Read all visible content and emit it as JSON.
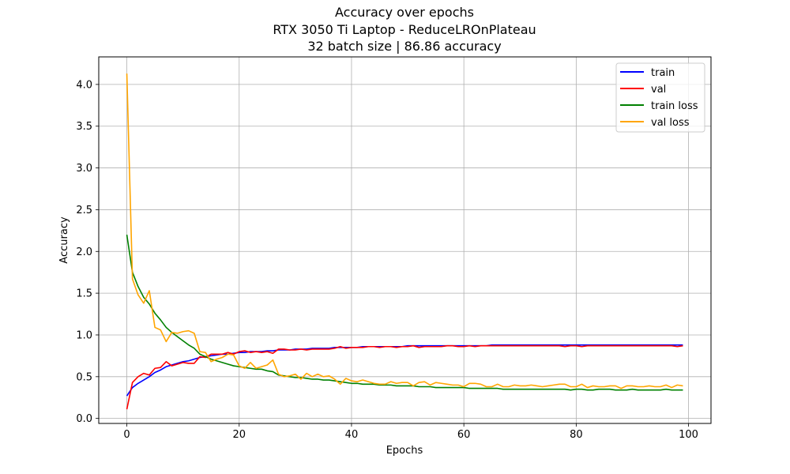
{
  "chart_data": {
    "type": "line",
    "title_lines": [
      "Accuracy over epochs",
      "RTX 3050 Ti Laptop - ReduceLROnPlateau",
      "32 batch size | 86.86 accuracy"
    ],
    "xlabel": "Epochs",
    "ylabel": "Accuracy",
    "xlim": [
      -5,
      104
    ],
    "ylim": [
      -0.06,
      4.33
    ],
    "x_ticks": [
      0,
      20,
      40,
      60,
      80,
      100
    ],
    "y_ticks": [
      0.0,
      0.5,
      1.0,
      1.5,
      2.0,
      2.5,
      3.0,
      3.5,
      4.0
    ],
    "x_tick_labels": [
      "0",
      "20",
      "40",
      "60",
      "80",
      "100"
    ],
    "y_tick_labels": [
      "0.0",
      "0.5",
      "1.0",
      "1.5",
      "2.0",
      "2.5",
      "3.0",
      "3.5",
      "4.0"
    ],
    "grid": true,
    "legend_position": "top-right",
    "series": [
      {
        "name": "train",
        "color": "#0000ff",
        "x": [
          0,
          1,
          2,
          3,
          4,
          5,
          6,
          7,
          8,
          9,
          10,
          11,
          12,
          13,
          14,
          15,
          16,
          17,
          18,
          19,
          20,
          21,
          22,
          23,
          24,
          25,
          26,
          27,
          28,
          29,
          30,
          31,
          32,
          33,
          34,
          35,
          36,
          37,
          38,
          39,
          40,
          41,
          42,
          43,
          44,
          45,
          46,
          47,
          48,
          49,
          50,
          51,
          52,
          53,
          54,
          55,
          56,
          57,
          58,
          59,
          60,
          61,
          62,
          63,
          64,
          65,
          66,
          67,
          68,
          69,
          70,
          71,
          72,
          73,
          74,
          75,
          76,
          77,
          78,
          79,
          80,
          81,
          82,
          83,
          84,
          85,
          86,
          87,
          88,
          89,
          90,
          91,
          92,
          93,
          94,
          95,
          96,
          97,
          98,
          99
        ],
        "values": [
          0.27,
          0.37,
          0.42,
          0.46,
          0.5,
          0.55,
          0.58,
          0.62,
          0.64,
          0.66,
          0.68,
          0.69,
          0.71,
          0.73,
          0.74,
          0.75,
          0.76,
          0.77,
          0.77,
          0.78,
          0.79,
          0.79,
          0.8,
          0.8,
          0.8,
          0.81,
          0.81,
          0.82,
          0.82,
          0.82,
          0.83,
          0.83,
          0.83,
          0.84,
          0.84,
          0.84,
          0.84,
          0.85,
          0.85,
          0.85,
          0.85,
          0.85,
          0.86,
          0.86,
          0.86,
          0.86,
          0.86,
          0.86,
          0.86,
          0.86,
          0.87,
          0.87,
          0.87,
          0.87,
          0.87,
          0.87,
          0.87,
          0.87,
          0.87,
          0.87,
          0.87,
          0.87,
          0.87,
          0.87,
          0.87,
          0.88,
          0.88,
          0.88,
          0.88,
          0.88,
          0.88,
          0.88,
          0.88,
          0.88,
          0.88,
          0.88,
          0.88,
          0.88,
          0.88,
          0.88,
          0.88,
          0.88,
          0.88,
          0.88,
          0.88,
          0.88,
          0.88,
          0.88,
          0.88,
          0.88,
          0.88,
          0.88,
          0.88,
          0.88,
          0.88,
          0.88,
          0.88,
          0.88,
          0.88,
          0.88
        ]
      },
      {
        "name": "val",
        "color": "#ff0000",
        "x": [
          0,
          1,
          2,
          3,
          4,
          5,
          6,
          7,
          8,
          9,
          10,
          11,
          12,
          13,
          14,
          15,
          16,
          17,
          18,
          19,
          20,
          21,
          22,
          23,
          24,
          25,
          26,
          27,
          28,
          29,
          30,
          31,
          32,
          33,
          34,
          35,
          36,
          37,
          38,
          39,
          40,
          41,
          42,
          43,
          44,
          45,
          46,
          47,
          48,
          49,
          50,
          51,
          52,
          53,
          54,
          55,
          56,
          57,
          58,
          59,
          60,
          61,
          62,
          63,
          64,
          65,
          66,
          67,
          68,
          69,
          70,
          71,
          72,
          73,
          74,
          75,
          76,
          77,
          78,
          79,
          80,
          81,
          82,
          83,
          84,
          85,
          86,
          87,
          88,
          89,
          90,
          91,
          92,
          93,
          94,
          95,
          96,
          97,
          98,
          99
        ],
        "values": [
          0.11,
          0.43,
          0.5,
          0.54,
          0.52,
          0.6,
          0.61,
          0.68,
          0.63,
          0.65,
          0.67,
          0.66,
          0.66,
          0.74,
          0.73,
          0.77,
          0.77,
          0.77,
          0.79,
          0.77,
          0.8,
          0.81,
          0.79,
          0.8,
          0.79,
          0.8,
          0.78,
          0.83,
          0.83,
          0.82,
          0.82,
          0.83,
          0.82,
          0.83,
          0.83,
          0.83,
          0.83,
          0.84,
          0.86,
          0.84,
          0.85,
          0.85,
          0.85,
          0.86,
          0.86,
          0.85,
          0.86,
          0.86,
          0.85,
          0.86,
          0.86,
          0.87,
          0.85,
          0.86,
          0.86,
          0.86,
          0.86,
          0.87,
          0.87,
          0.86,
          0.86,
          0.87,
          0.86,
          0.87,
          0.87,
          0.87,
          0.87,
          0.87,
          0.87,
          0.87,
          0.87,
          0.87,
          0.87,
          0.87,
          0.87,
          0.87,
          0.87,
          0.87,
          0.86,
          0.87,
          0.87,
          0.86,
          0.87,
          0.87,
          0.87,
          0.87,
          0.87,
          0.87,
          0.87,
          0.87,
          0.87,
          0.87,
          0.87,
          0.87,
          0.87,
          0.87,
          0.87,
          0.87,
          0.86,
          0.87
        ]
      },
      {
        "name": "train loss",
        "color": "#008000",
        "x": [
          0,
          1,
          2,
          3,
          4,
          5,
          6,
          7,
          8,
          9,
          10,
          11,
          12,
          13,
          14,
          15,
          16,
          17,
          18,
          19,
          20,
          21,
          22,
          23,
          24,
          25,
          26,
          27,
          28,
          29,
          30,
          31,
          32,
          33,
          34,
          35,
          36,
          37,
          38,
          39,
          40,
          41,
          42,
          43,
          44,
          45,
          46,
          47,
          48,
          49,
          50,
          51,
          52,
          53,
          54,
          55,
          56,
          57,
          58,
          59,
          60,
          61,
          62,
          63,
          64,
          65,
          66,
          67,
          68,
          69,
          70,
          71,
          72,
          73,
          74,
          75,
          76,
          77,
          78,
          79,
          80,
          81,
          82,
          83,
          84,
          85,
          86,
          87,
          88,
          89,
          90,
          91,
          92,
          93,
          94,
          95,
          96,
          97,
          98,
          99
        ],
        "values": [
          2.2,
          1.75,
          1.58,
          1.45,
          1.37,
          1.26,
          1.18,
          1.09,
          1.03,
          0.98,
          0.93,
          0.88,
          0.84,
          0.77,
          0.74,
          0.71,
          0.69,
          0.67,
          0.65,
          0.63,
          0.62,
          0.61,
          0.6,
          0.59,
          0.59,
          0.57,
          0.56,
          0.52,
          0.51,
          0.5,
          0.49,
          0.49,
          0.48,
          0.47,
          0.47,
          0.46,
          0.46,
          0.45,
          0.44,
          0.43,
          0.42,
          0.42,
          0.41,
          0.41,
          0.41,
          0.4,
          0.4,
          0.4,
          0.39,
          0.39,
          0.39,
          0.39,
          0.38,
          0.38,
          0.38,
          0.37,
          0.37,
          0.37,
          0.37,
          0.37,
          0.37,
          0.36,
          0.36,
          0.36,
          0.36,
          0.36,
          0.36,
          0.35,
          0.35,
          0.35,
          0.35,
          0.35,
          0.35,
          0.35,
          0.35,
          0.35,
          0.35,
          0.35,
          0.35,
          0.34,
          0.35,
          0.35,
          0.34,
          0.34,
          0.35,
          0.35,
          0.35,
          0.34,
          0.34,
          0.34,
          0.35,
          0.34,
          0.34,
          0.34,
          0.34,
          0.34,
          0.35,
          0.34,
          0.34,
          0.34
        ]
      },
      {
        "name": "val loss",
        "color": "#ffa500",
        "x": [
          0,
          1,
          2,
          3,
          4,
          5,
          6,
          7,
          8,
          9,
          10,
          11,
          12,
          13,
          14,
          15,
          16,
          17,
          18,
          19,
          20,
          21,
          22,
          23,
          24,
          25,
          26,
          27,
          28,
          29,
          30,
          31,
          32,
          33,
          34,
          35,
          36,
          37,
          38,
          39,
          40,
          41,
          42,
          43,
          44,
          45,
          46,
          47,
          48,
          49,
          50,
          51,
          52,
          53,
          54,
          55,
          56,
          57,
          58,
          59,
          60,
          61,
          62,
          63,
          64,
          65,
          66,
          67,
          68,
          69,
          70,
          71,
          72,
          73,
          74,
          75,
          76,
          77,
          78,
          79,
          80,
          81,
          82,
          83,
          84,
          85,
          86,
          87,
          88,
          89,
          90,
          91,
          92,
          93,
          94,
          95,
          96,
          97,
          98,
          99
        ],
        "values": [
          4.13,
          1.67,
          1.48,
          1.38,
          1.53,
          1.09,
          1.06,
          0.92,
          1.03,
          1.02,
          1.04,
          1.05,
          1.02,
          0.8,
          0.79,
          0.68,
          0.71,
          0.73,
          0.77,
          0.76,
          0.63,
          0.6,
          0.67,
          0.6,
          0.62,
          0.64,
          0.7,
          0.53,
          0.5,
          0.51,
          0.53,
          0.47,
          0.54,
          0.5,
          0.53,
          0.5,
          0.51,
          0.47,
          0.41,
          0.48,
          0.45,
          0.44,
          0.46,
          0.44,
          0.42,
          0.41,
          0.41,
          0.44,
          0.42,
          0.43,
          0.43,
          0.39,
          0.43,
          0.44,
          0.4,
          0.43,
          0.42,
          0.41,
          0.4,
          0.4,
          0.38,
          0.42,
          0.42,
          0.41,
          0.38,
          0.38,
          0.41,
          0.38,
          0.38,
          0.4,
          0.39,
          0.39,
          0.4,
          0.39,
          0.38,
          0.39,
          0.4,
          0.41,
          0.41,
          0.38,
          0.38,
          0.41,
          0.37,
          0.39,
          0.38,
          0.38,
          0.39,
          0.39,
          0.36,
          0.39,
          0.39,
          0.38,
          0.38,
          0.39,
          0.38,
          0.38,
          0.4,
          0.37,
          0.4,
          0.39
        ]
      }
    ]
  }
}
